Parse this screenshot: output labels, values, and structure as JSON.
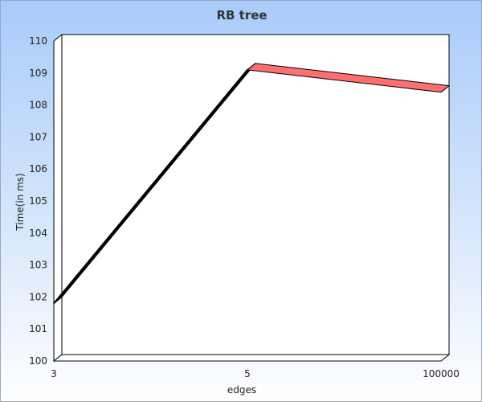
{
  "chart_data": {
    "type": "line",
    "title": "RB tree",
    "xlabel": "edges",
    "ylabel": "Time(in ms)",
    "categories": [
      "3",
      "5",
      "100000"
    ],
    "series": [
      {
        "values": [
          101.8,
          109.1,
          108.4
        ],
        "color_first_segment": "#000000",
        "color_second_segment": "#ff6f6f"
      }
    ],
    "ylim": [
      100,
      110
    ],
    "yticks": [
      100,
      101,
      102,
      103,
      104,
      105,
      106,
      107,
      108,
      109,
      110
    ],
    "grid": false,
    "style": "3d-ribbon",
    "background": "gradient-blue-to-white"
  }
}
